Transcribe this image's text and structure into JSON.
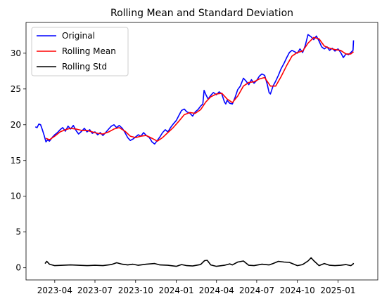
{
  "chart_data": {
    "type": "line",
    "title": "Rolling Mean and Standard Deviation",
    "xlabel": "",
    "ylabel": "",
    "x_range": [
      "2023-01-26",
      "2025-04-01"
    ],
    "ylim": [
      -1.7,
      34.3
    ],
    "y_ticks": [
      0,
      5,
      10,
      15,
      20,
      25,
      30
    ],
    "x_ticks": [
      {
        "date": "2023-04-01",
        "label": "2023-04"
      },
      {
        "date": "2023-07-01",
        "label": "2023-07"
      },
      {
        "date": "2023-10-01",
        "label": "2023-10"
      },
      {
        "date": "2024-01-01",
        "label": "2024-01"
      },
      {
        "date": "2024-04-01",
        "label": "2024-04"
      },
      {
        "date": "2024-07-01",
        "label": "2024-07"
      },
      {
        "date": "2024-10-01",
        "label": "2024-10"
      },
      {
        "date": "2025-01-01",
        "label": "2025-01"
      }
    ],
    "grid": false,
    "legend_position": "top-left",
    "series": [
      {
        "name": "Original",
        "color": "#0000ff",
        "points": [
          [
            "2023-02-16",
            19.7
          ],
          [
            "2023-02-20",
            19.6
          ],
          [
            "2023-02-24",
            20.1
          ],
          [
            "2023-02-28",
            20.0
          ],
          [
            "2023-03-04",
            19.3
          ],
          [
            "2023-03-08",
            18.5
          ],
          [
            "2023-03-12",
            17.6
          ],
          [
            "2023-03-16",
            17.9
          ],
          [
            "2023-03-20",
            17.7
          ],
          [
            "2023-03-26",
            18.2
          ],
          [
            "2023-04-01",
            18.6
          ],
          [
            "2023-04-07",
            18.9
          ],
          [
            "2023-04-13",
            19.3
          ],
          [
            "2023-04-19",
            19.6
          ],
          [
            "2023-04-25",
            19.1
          ],
          [
            "2023-05-01",
            19.8
          ],
          [
            "2023-05-07",
            19.4
          ],
          [
            "2023-05-13",
            19.9
          ],
          [
            "2023-05-19",
            19.2
          ],
          [
            "2023-05-25",
            18.7
          ],
          [
            "2023-06-01",
            19.1
          ],
          [
            "2023-06-07",
            19.5
          ],
          [
            "2023-06-13",
            19.0
          ],
          [
            "2023-06-19",
            19.3
          ],
          [
            "2023-06-25",
            18.8
          ],
          [
            "2023-07-01",
            19.0
          ],
          [
            "2023-07-07",
            18.6
          ],
          [
            "2023-07-13",
            18.9
          ],
          [
            "2023-07-19",
            18.5
          ],
          [
            "2023-07-25",
            18.9
          ],
          [
            "2023-08-01",
            19.4
          ],
          [
            "2023-08-07",
            19.8
          ],
          [
            "2023-08-13",
            20.0
          ],
          [
            "2023-08-19",
            19.6
          ],
          [
            "2023-08-25",
            19.9
          ],
          [
            "2023-09-01",
            19.5
          ],
          [
            "2023-09-07",
            18.9
          ],
          [
            "2023-09-13",
            18.2
          ],
          [
            "2023-09-19",
            17.8
          ],
          [
            "2023-09-25",
            18.0
          ],
          [
            "2023-10-01",
            18.3
          ],
          [
            "2023-10-07",
            18.6
          ],
          [
            "2023-10-13",
            18.4
          ],
          [
            "2023-10-19",
            18.9
          ],
          [
            "2023-10-25",
            18.5
          ],
          [
            "2023-11-01",
            18.2
          ],
          [
            "2023-11-07",
            17.6
          ],
          [
            "2023-11-13",
            17.3
          ],
          [
            "2023-11-19",
            17.8
          ],
          [
            "2023-11-25",
            18.3
          ],
          [
            "2023-12-01",
            18.9
          ],
          [
            "2023-12-07",
            19.3
          ],
          [
            "2023-12-13",
            19.0
          ],
          [
            "2023-12-19",
            19.6
          ],
          [
            "2023-12-25",
            20.1
          ],
          [
            "2024-01-01",
            20.6
          ],
          [
            "2024-01-07",
            21.3
          ],
          [
            "2024-01-13",
            22.0
          ],
          [
            "2024-01-19",
            22.2
          ],
          [
            "2024-01-25",
            21.8
          ],
          [
            "2024-02-01",
            21.6
          ],
          [
            "2024-02-07",
            21.2
          ],
          [
            "2024-02-13",
            21.8
          ],
          [
            "2024-02-19",
            22.1
          ],
          [
            "2024-02-25",
            22.6
          ],
          [
            "2024-03-01",
            22.9
          ],
          [
            "2024-03-04",
            24.8
          ],
          [
            "2024-03-08",
            24.2
          ],
          [
            "2024-03-13",
            23.6
          ],
          [
            "2024-03-19",
            24.1
          ],
          [
            "2024-03-25",
            24.5
          ],
          [
            "2024-04-01",
            24.2
          ],
          [
            "2024-04-07",
            24.6
          ],
          [
            "2024-04-13",
            24.3
          ],
          [
            "2024-04-19",
            23.2
          ],
          [
            "2024-04-22",
            22.9
          ],
          [
            "2024-04-25",
            23.4
          ],
          [
            "2024-05-01",
            23.0
          ],
          [
            "2024-05-07",
            22.9
          ],
          [
            "2024-05-13",
            23.8
          ],
          [
            "2024-05-19",
            24.9
          ],
          [
            "2024-05-25",
            25.4
          ],
          [
            "2024-06-01",
            26.5
          ],
          [
            "2024-06-07",
            26.1
          ],
          [
            "2024-06-13",
            25.6
          ],
          [
            "2024-06-19",
            26.3
          ],
          [
            "2024-06-25",
            25.8
          ],
          [
            "2024-07-01",
            26.2
          ],
          [
            "2024-07-07",
            26.8
          ],
          [
            "2024-07-13",
            27.1
          ],
          [
            "2024-07-19",
            26.9
          ],
          [
            "2024-07-25",
            25.6
          ],
          [
            "2024-07-29",
            24.5
          ],
          [
            "2024-08-01",
            24.3
          ],
          [
            "2024-08-07",
            25.4
          ],
          [
            "2024-08-13",
            26.1
          ],
          [
            "2024-08-19",
            26.9
          ],
          [
            "2024-08-25",
            27.8
          ],
          [
            "2024-09-01",
            28.6
          ],
          [
            "2024-09-07",
            29.4
          ],
          [
            "2024-09-13",
            30.1
          ],
          [
            "2024-09-19",
            30.4
          ],
          [
            "2024-09-25",
            30.2
          ],
          [
            "2024-10-01",
            30.0
          ],
          [
            "2024-10-07",
            30.6
          ],
          [
            "2024-10-13",
            30.1
          ],
          [
            "2024-10-19",
            31.1
          ],
          [
            "2024-10-25",
            32.6
          ],
          [
            "2024-11-01",
            32.3
          ],
          [
            "2024-11-07",
            31.9
          ],
          [
            "2024-11-13",
            32.4
          ],
          [
            "2024-11-19",
            31.7
          ],
          [
            "2024-11-25",
            30.9
          ],
          [
            "2024-12-01",
            30.6
          ],
          [
            "2024-12-07",
            30.9
          ],
          [
            "2024-12-13",
            30.4
          ],
          [
            "2024-12-19",
            30.7
          ],
          [
            "2024-12-25",
            30.3
          ],
          [
            "2025-01-01",
            30.6
          ],
          [
            "2025-01-07",
            30.1
          ],
          [
            "2025-01-13",
            29.4
          ],
          [
            "2025-01-19",
            29.9
          ],
          [
            "2025-01-25",
            29.8
          ],
          [
            "2025-01-30",
            30.1
          ],
          [
            "2025-02-04",
            30.4
          ],
          [
            "2025-02-05",
            31.8
          ]
        ]
      },
      {
        "name": "Rolling Mean",
        "color": "#ff0000",
        "points": [
          [
            "2023-03-12",
            18.1
          ],
          [
            "2023-03-20",
            17.9
          ],
          [
            "2023-04-01",
            18.4
          ],
          [
            "2023-04-13",
            19.0
          ],
          [
            "2023-04-25",
            19.3
          ],
          [
            "2023-05-07",
            19.5
          ],
          [
            "2023-05-19",
            19.4
          ],
          [
            "2023-06-01",
            19.2
          ],
          [
            "2023-06-13",
            19.2
          ],
          [
            "2023-06-25",
            19.0
          ],
          [
            "2023-07-07",
            18.8
          ],
          [
            "2023-07-19",
            18.7
          ],
          [
            "2023-08-01",
            19.0
          ],
          [
            "2023-08-13",
            19.4
          ],
          [
            "2023-08-25",
            19.6
          ],
          [
            "2023-09-07",
            19.1
          ],
          [
            "2023-09-19",
            18.4
          ],
          [
            "2023-10-01",
            18.2
          ],
          [
            "2023-10-13",
            18.4
          ],
          [
            "2023-10-25",
            18.5
          ],
          [
            "2023-11-07",
            18.1
          ],
          [
            "2023-11-19",
            17.7
          ],
          [
            "2023-12-01",
            18.2
          ],
          [
            "2023-12-13",
            18.9
          ],
          [
            "2023-12-25",
            19.6
          ],
          [
            "2024-01-07",
            20.5
          ],
          [
            "2024-01-19",
            21.4
          ],
          [
            "2024-02-01",
            21.7
          ],
          [
            "2024-02-13",
            21.6
          ],
          [
            "2024-02-25",
            22.1
          ],
          [
            "2024-03-08",
            23.2
          ],
          [
            "2024-03-19",
            23.9
          ],
          [
            "2024-04-01",
            24.3
          ],
          [
            "2024-04-13",
            24.4
          ],
          [
            "2024-04-25",
            23.6
          ],
          [
            "2024-05-07",
            23.1
          ],
          [
            "2024-05-19",
            24.0
          ],
          [
            "2024-06-01",
            25.4
          ],
          [
            "2024-06-13",
            25.9
          ],
          [
            "2024-06-25",
            26.0
          ],
          [
            "2024-07-07",
            26.4
          ],
          [
            "2024-07-19",
            26.6
          ],
          [
            "2024-08-01",
            25.4
          ],
          [
            "2024-08-13",
            25.4
          ],
          [
            "2024-08-25",
            26.7
          ],
          [
            "2024-09-07",
            28.3
          ],
          [
            "2024-09-19",
            29.6
          ],
          [
            "2024-10-01",
            30.1
          ],
          [
            "2024-10-13",
            30.3
          ],
          [
            "2024-10-25",
            31.4
          ],
          [
            "2024-11-07",
            32.2
          ],
          [
            "2024-11-19",
            32.0
          ],
          [
            "2024-12-01",
            31.0
          ],
          [
            "2024-12-13",
            30.7
          ],
          [
            "2024-12-25",
            30.5
          ],
          [
            "2025-01-07",
            30.4
          ],
          [
            "2025-01-19",
            29.9
          ],
          [
            "2025-01-30",
            29.9
          ],
          [
            "2025-02-05",
            30.2
          ]
        ]
      },
      {
        "name": "Rolling Std",
        "color": "#000000",
        "points": [
          [
            "2023-03-10",
            0.6
          ],
          [
            "2023-03-14",
            0.9
          ],
          [
            "2023-03-20",
            0.5
          ],
          [
            "2023-04-01",
            0.3
          ],
          [
            "2023-04-19",
            0.35
          ],
          [
            "2023-05-07",
            0.4
          ],
          [
            "2023-05-25",
            0.35
          ],
          [
            "2023-06-13",
            0.3
          ],
          [
            "2023-07-01",
            0.35
          ],
          [
            "2023-07-19",
            0.3
          ],
          [
            "2023-08-07",
            0.45
          ],
          [
            "2023-08-19",
            0.7
          ],
          [
            "2023-09-01",
            0.5
          ],
          [
            "2023-09-13",
            0.4
          ],
          [
            "2023-09-25",
            0.5
          ],
          [
            "2023-10-07",
            0.35
          ],
          [
            "2023-10-25",
            0.5
          ],
          [
            "2023-11-13",
            0.6
          ],
          [
            "2023-11-25",
            0.4
          ],
          [
            "2023-12-13",
            0.35
          ],
          [
            "2024-01-01",
            0.2
          ],
          [
            "2024-01-13",
            0.45
          ],
          [
            "2024-01-25",
            0.3
          ],
          [
            "2024-02-07",
            0.25
          ],
          [
            "2024-02-25",
            0.45
          ],
          [
            "2024-03-05",
            1.0
          ],
          [
            "2024-03-11",
            1.05
          ],
          [
            "2024-03-19",
            0.4
          ],
          [
            "2024-04-01",
            0.2
          ],
          [
            "2024-04-19",
            0.35
          ],
          [
            "2024-05-01",
            0.55
          ],
          [
            "2024-05-07",
            0.4
          ],
          [
            "2024-05-19",
            0.8
          ],
          [
            "2024-06-01",
            0.95
          ],
          [
            "2024-06-13",
            0.35
          ],
          [
            "2024-06-25",
            0.3
          ],
          [
            "2024-07-13",
            0.5
          ],
          [
            "2024-07-29",
            0.4
          ],
          [
            "2024-08-07",
            0.6
          ],
          [
            "2024-08-19",
            0.9
          ],
          [
            "2024-09-01",
            0.8
          ],
          [
            "2024-09-13",
            0.75
          ],
          [
            "2024-10-01",
            0.3
          ],
          [
            "2024-10-13",
            0.45
          ],
          [
            "2024-10-25",
            0.95
          ],
          [
            "2024-11-01",
            1.4
          ],
          [
            "2024-11-07",
            1.0
          ],
          [
            "2024-11-19",
            0.3
          ],
          [
            "2024-12-01",
            0.6
          ],
          [
            "2024-12-13",
            0.35
          ],
          [
            "2024-12-25",
            0.3
          ],
          [
            "2025-01-07",
            0.35
          ],
          [
            "2025-01-19",
            0.45
          ],
          [
            "2025-01-30",
            0.3
          ],
          [
            "2025-02-04",
            0.5
          ],
          [
            "2025-02-05",
            0.65
          ]
        ]
      }
    ]
  }
}
